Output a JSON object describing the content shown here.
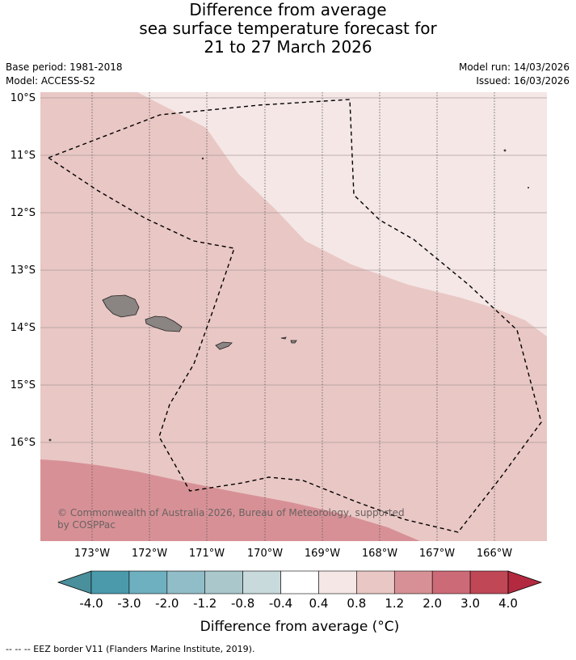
{
  "header": {
    "title_line1": "Difference from average",
    "title_line2": "sea surface temperature forecast for",
    "title_line3": "21 to 27 March 2026",
    "base_period": "Base period: 1981-2018",
    "model": "Model: ACCESS-S2",
    "model_run": "Model run: 14/03/2026",
    "issued": "Issued: 16/03/2026"
  },
  "map": {
    "lat_labels": [
      "10°S",
      "11°S",
      "12°S",
      "13°S",
      "14°S",
      "15°S",
      "16°S"
    ],
    "lon_labels": [
      "173°W",
      "172°W",
      "171°W",
      "170°W",
      "169°W",
      "168°W",
      "167°W",
      "166°W"
    ],
    "copyright_line1": "© Commonwealth of Australia 2026, Bureau of Meteorology, supported",
    "copyright_line2": "by COSPPac",
    "zone_colors": {
      "0.4_to_0.8": "#f4e7e6",
      "0.8_to_1.2": "#e9c7c4",
      "1.2_to_2.0": "#d79196"
    },
    "land_color": "#8a8483"
  },
  "colorbar": {
    "tick_labels": [
      "-4.0",
      "-3.0",
      "-2.0",
      "-1.2",
      "-0.8",
      "-0.4",
      "0.4",
      "0.8",
      "1.2",
      "2.0",
      "3.0",
      "4.0"
    ],
    "colors": [
      "#4a9aab",
      "#6eb0c0",
      "#91bdc8",
      "#aac8cc",
      "#c9dadd",
      "#ffffff",
      "#f4e7e6",
      "#e9c7c4",
      "#d79196",
      "#cd6a77",
      "#c04756"
    ],
    "under_color": "#4a8f9c",
    "over_color": "#b32a40",
    "label": "Difference from average (°C)"
  },
  "footer": {
    "text": "--  --  -- EEZ border V11 (Flanders Marine Institute, 2019)."
  }
}
